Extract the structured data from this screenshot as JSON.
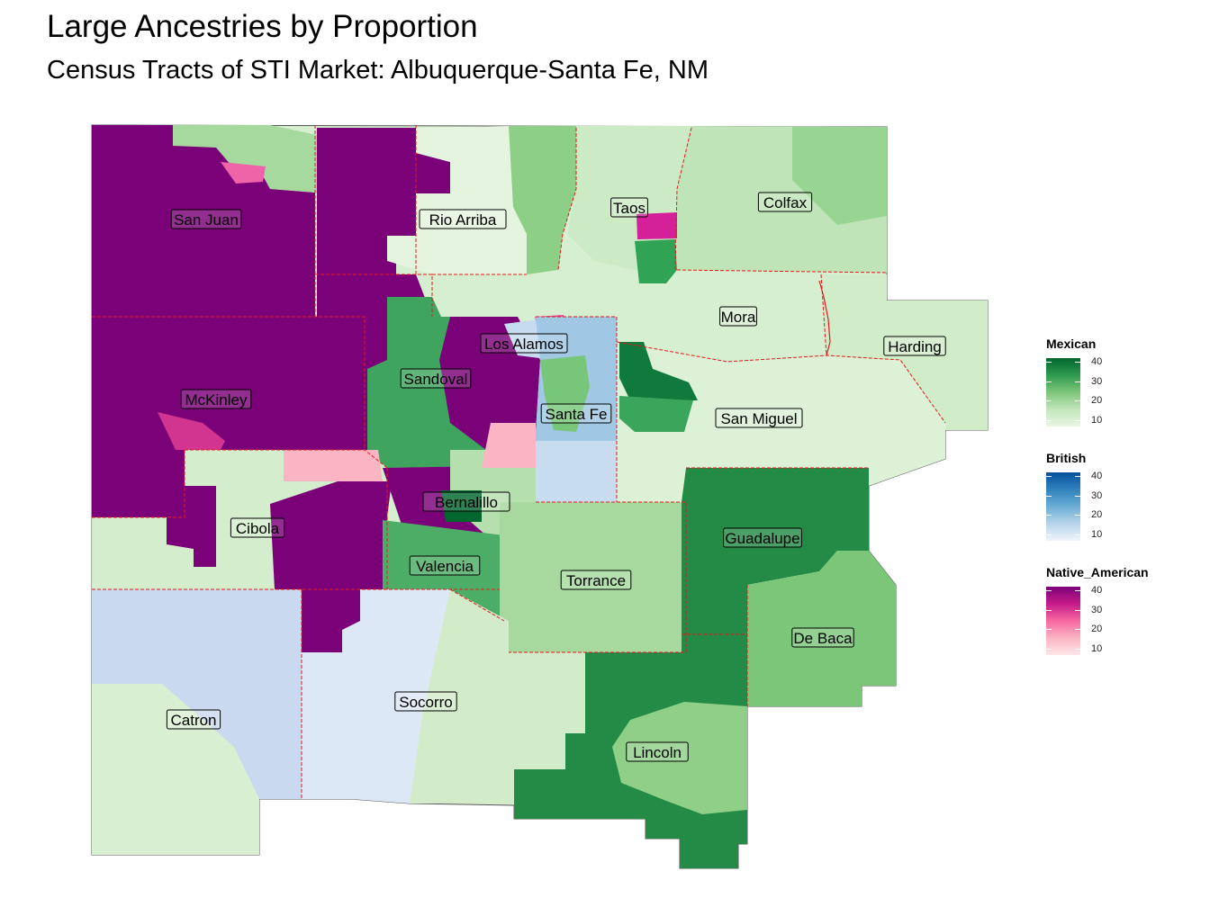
{
  "title": "Large Ancestries by Proportion",
  "subtitle": "Census Tracts of STI Market: Albuquerque-Santa Fe, NM",
  "counties": [
    {
      "name": "San Juan",
      "ancestry": "Native_American"
    },
    {
      "name": "Rio Arriba",
      "ancestry": "Mexican"
    },
    {
      "name": "Taos",
      "ancestry": "Mexican"
    },
    {
      "name": "Colfax",
      "ancestry": "Mexican"
    },
    {
      "name": "Mora",
      "ancestry": "Mexican"
    },
    {
      "name": "Harding",
      "ancestry": "Mexican"
    },
    {
      "name": "Los Alamos",
      "ancestry": "British"
    },
    {
      "name": "Sandoval",
      "ancestry": "Native_American"
    },
    {
      "name": "McKinley",
      "ancestry": "Native_American"
    },
    {
      "name": "Santa Fe",
      "ancestry": "British"
    },
    {
      "name": "San Miguel",
      "ancestry": "Mexican"
    },
    {
      "name": "Bernalillo",
      "ancestry": "Mexican"
    },
    {
      "name": "Cibola",
      "ancestry": "Native_American"
    },
    {
      "name": "Guadalupe",
      "ancestry": "Mexican"
    },
    {
      "name": "Valencia",
      "ancestry": "Mexican"
    },
    {
      "name": "Torrance",
      "ancestry": "Mexican"
    },
    {
      "name": "De Baca",
      "ancestry": "Mexican"
    },
    {
      "name": "Socorro",
      "ancestry": "British"
    },
    {
      "name": "Catron",
      "ancestry": "British"
    },
    {
      "name": "Lincoln",
      "ancestry": "Mexican"
    }
  ],
  "legends": [
    {
      "title": "Mexican",
      "ticks": [
        "40",
        "30",
        "20",
        "10"
      ],
      "colors": [
        "#00672e",
        "#2f9a4f",
        "#7cc67a",
        "#c2e6bb",
        "#eaf6e4"
      ]
    },
    {
      "title": "British",
      "ticks": [
        "40",
        "30",
        "20",
        "10"
      ],
      "colors": [
        "#08519c",
        "#3182bd",
        "#6baed6",
        "#b7d4ea",
        "#eef4fb"
      ]
    },
    {
      "title": "Native_American",
      "ticks": [
        "40",
        "30",
        "20",
        "10"
      ],
      "colors": [
        "#7a0177",
        "#c51b8a",
        "#f768a1",
        "#fbb4c3",
        "#fde7e6"
      ]
    }
  ],
  "boundary_color": "#e41a1c"
}
